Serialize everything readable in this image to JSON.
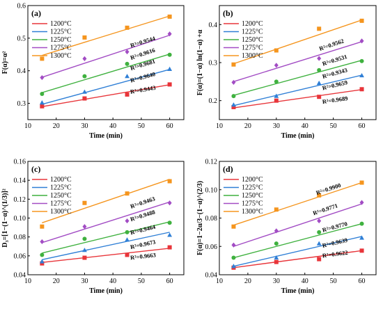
{
  "colors": [
    "#e8353a",
    "#2f7fd6",
    "#3fb13f",
    "#a24cc4",
    "#f5951e"
  ],
  "chart_data": [
    {
      "type": "scatter",
      "panel_label": "(a)",
      "xlabel": "Time (min)",
      "ylabel": "F(α)=α²",
      "xlim": [
        10,
        65
      ],
      "ylim": [
        0.25,
        0.6
      ],
      "x_ticks": [
        10,
        20,
        30,
        40,
        50,
        60
      ],
      "y_ticks": [
        0.3,
        0.4,
        0.5,
        0.6
      ],
      "y_tick_labels": [
        "0.3",
        "0.4",
        "0.5",
        "0.6"
      ],
      "x": [
        15,
        30,
        45,
        60
      ],
      "legend_position": "top-left",
      "series": [
        {
          "name": "1200°C",
          "marker": "square",
          "values": [
            0.291,
            0.315,
            0.327,
            0.358
          ],
          "fit": [
            0.29,
            0.357
          ],
          "r2_label": "R²=0.9443"
        },
        {
          "name": "1225°C",
          "marker": "triangle",
          "values": [
            0.302,
            0.335,
            0.383,
            0.405
          ],
          "fit": [
            0.297,
            0.404
          ],
          "r2_label": "R²=0.9640"
        },
        {
          "name": "1250°C",
          "marker": "circle",
          "values": [
            0.329,
            0.383,
            0.421,
            0.449
          ],
          "fit": [
            0.333,
            0.451
          ],
          "r2_label": "R²=0.9681"
        },
        {
          "name": "1275°C",
          "marker": "diamond",
          "values": [
            0.379,
            0.437,
            0.458,
            0.513
          ],
          "fit": [
            0.38,
            0.509
          ],
          "r2_label": "R²=0.9616"
        },
        {
          "name": "1300°C",
          "marker": "square",
          "values": [
            0.437,
            0.502,
            0.532,
            0.566
          ],
          "fit": [
            0.447,
            0.568
          ],
          "r2_label": "R²=0.9544"
        }
      ]
    },
    {
      "type": "scatter",
      "panel_label": "(b)",
      "xlabel": "Time (min)",
      "ylabel": "F(α)=(1−α) ln(1−α) +α",
      "xlim": [
        10,
        65
      ],
      "ylim": [
        0.15,
        0.45
      ],
      "x_ticks": [
        10,
        20,
        30,
        40,
        50,
        60
      ],
      "y_ticks": [
        0.2,
        0.3,
        0.4
      ],
      "y_tick_labels": [
        "0.2",
        "0.3",
        "0.4"
      ],
      "x": [
        15,
        30,
        45,
        60
      ],
      "legend_position": "top-left",
      "series": [
        {
          "name": "1200°C",
          "marker": "square",
          "values": [
            0.183,
            0.2,
            0.21,
            0.23
          ],
          "fit": [
            0.181,
            0.229
          ],
          "r2_label": "R²=0.9689"
        },
        {
          "name": "1225°C",
          "marker": "triangle",
          "values": [
            0.189,
            0.212,
            0.246,
            0.266
          ],
          "fit": [
            0.187,
            0.267
          ],
          "r2_label": "R²=0.9659"
        },
        {
          "name": "1250°C",
          "marker": "circle",
          "values": [
            0.212,
            0.25,
            0.28,
            0.304
          ],
          "fit": [
            0.214,
            0.306
          ],
          "r2_label": "R²=0.9343"
        },
        {
          "name": "1275°C",
          "marker": "diamond",
          "values": [
            0.248,
            0.293,
            0.311,
            0.357
          ],
          "fit": [
            0.25,
            0.355
          ],
          "r2_label": "R²=0.9531"
        },
        {
          "name": "1300°C",
          "marker": "square",
          "values": [
            0.295,
            0.332,
            0.389,
            0.41
          ],
          "fit": [
            0.297,
            0.412
          ],
          "r2_label": "R²=0.9562"
        }
      ]
    },
    {
      "type": "scatter",
      "panel_label": "(c)",
      "xlabel": "Time (min)",
      "ylabel": "D₃=[1−(1−α)^(1/3)]²",
      "xlim": [
        10,
        65
      ],
      "ylim": [
        0.04,
        0.16
      ],
      "x_ticks": [
        10,
        20,
        30,
        40,
        50,
        60
      ],
      "y_ticks": [
        0.04,
        0.06,
        0.08,
        0.1,
        0.12,
        0.14,
        0.16
      ],
      "y_tick_labels": [
        "0.04",
        "0.06",
        "0.08",
        "0.10",
        "0.12",
        "0.14",
        "0.16"
      ],
      "x": [
        15,
        30,
        45,
        60
      ],
      "legend_position": "top-left",
      "series": [
        {
          "name": "1200°C",
          "marker": "square",
          "values": [
            0.052,
            0.058,
            0.061,
            0.069
          ],
          "fit": [
            0.053,
            0.068
          ],
          "r2_label": "R²=0.9663"
        },
        {
          "name": "1225°C",
          "marker": "triangle",
          "values": [
            0.054,
            0.066,
            0.077,
            0.082
          ],
          "fit": [
            0.056,
            0.085
          ],
          "r2_label": "R²=0.9673"
        },
        {
          "name": "1250°C",
          "marker": "circle",
          "values": [
            0.061,
            0.078,
            0.085,
            0.095
          ],
          "fit": [
            0.063,
            0.096
          ],
          "r2_label": "R²=0.9464"
        },
        {
          "name": "1275°C",
          "marker": "diamond",
          "values": [
            0.075,
            0.091,
            0.097,
            0.116
          ],
          "fit": [
            0.074,
            0.117
          ],
          "r2_label": "R²=0.9488"
        },
        {
          "name": "1300°C",
          "marker": "square",
          "values": [
            0.091,
            0.116,
            0.126,
            0.139
          ],
          "fit": [
            0.095,
            0.141
          ],
          "r2_label": "R²=0.9463"
        }
      ]
    },
    {
      "type": "scatter",
      "panel_label": "(d)",
      "xlabel": "Time (min)",
      "ylabel": "F(α)=1−2α/3−(1−α)^(2/3)",
      "xlim": [
        10,
        65
      ],
      "ylim": [
        0.04,
        0.12
      ],
      "x_ticks": [
        10,
        20,
        30,
        40,
        50,
        60
      ],
      "y_ticks": [
        0.04,
        0.06,
        0.08,
        0.1,
        0.12
      ],
      "y_tick_labels": [
        "0.04",
        "0.06",
        "0.08",
        "0.10",
        "0.12"
      ],
      "x": [
        15,
        30,
        45,
        60
      ],
      "legend_position": "top-left",
      "series": [
        {
          "name": "1200°C",
          "marker": "square",
          "values": [
            0.045,
            0.049,
            0.051,
            0.057
          ],
          "fit": [
            0.045,
            0.057
          ],
          "r2_label": "R²=0.9622"
        },
        {
          "name": "1225°C",
          "marker": "triangle",
          "values": [
            0.046,
            0.052,
            0.062,
            0.066
          ],
          "fit": [
            0.046,
            0.067
          ],
          "r2_label": "R²=0.9639"
        },
        {
          "name": "1250°C",
          "marker": "circle",
          "values": [
            0.052,
            0.062,
            0.07,
            0.076
          ],
          "fit": [
            0.052,
            0.076
          ],
          "r2_label": "R²=0.9770"
        },
        {
          "name": "1275°C",
          "marker": "diamond",
          "values": [
            0.061,
            0.071,
            0.078,
            0.091
          ],
          "fit": [
            0.06,
            0.09
          ],
          "r2_label": "R²=0.9771"
        },
        {
          "name": "1300°C",
          "marker": "square",
          "values": [
            0.074,
            0.086,
            0.096,
            0.105
          ],
          "fit": [
            0.075,
            0.105
          ],
          "r2_label": "R²=0.9900"
        }
      ]
    }
  ]
}
